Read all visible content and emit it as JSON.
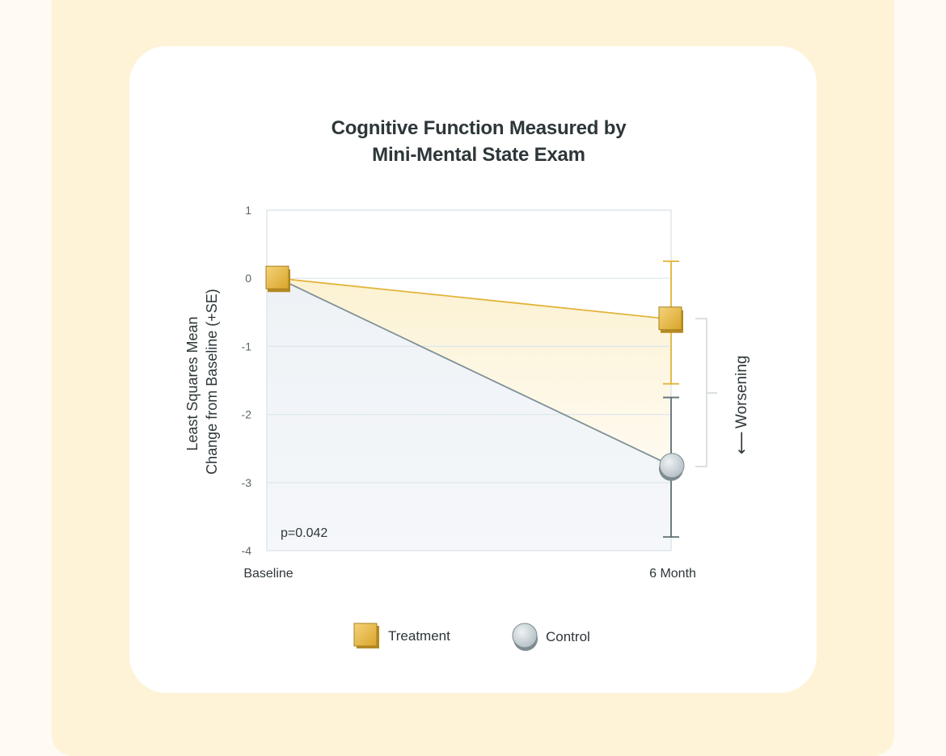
{
  "chart_data": {
    "type": "line",
    "title_lines": [
      "Cognitive Function Measured by",
      "Mini-Mental State Exam"
    ],
    "ylabel_lines": [
      "Least Squares Mean",
      "Change from Baseline (+SE)"
    ],
    "xlabel": "",
    "categories": [
      "Baseline",
      "6 Month"
    ],
    "y_ticks": [
      "1",
      "0",
      "-1",
      "-2",
      "-3",
      "-4"
    ],
    "ylim": [
      -4,
      1
    ],
    "grid": true,
    "series": [
      {
        "name": "Treatment",
        "marker": "square",
        "color": "#e3b43a",
        "values": [
          0,
          -0.6
        ],
        "error_plus": [
          0,
          0.85
        ],
        "error_minus": [
          0,
          0.95
        ]
      },
      {
        "name": "Control",
        "marker": "circle",
        "color": "#7f9197",
        "values": [
          0,
          -2.75
        ],
        "error_plus": [
          0,
          1.0
        ],
        "error_minus": [
          0,
          1.05
        ]
      }
    ],
    "annotations": {
      "p_value": "p=0.042",
      "direction_label": "Worsening",
      "direction_arrow": "⟵"
    },
    "legend": {
      "placement": "bottom-center",
      "items": [
        {
          "label": "Treatment",
          "marker": "square"
        },
        {
          "label": "Control",
          "marker": "circle"
        }
      ]
    }
  },
  "colors": {
    "page_background": "#fffaf4",
    "panel": "#fef3d7",
    "card": "#ffffff",
    "treatment": "#e3b43a",
    "control": "#7f9197",
    "grid": "#dde7ec",
    "text": "#2d3639"
  }
}
